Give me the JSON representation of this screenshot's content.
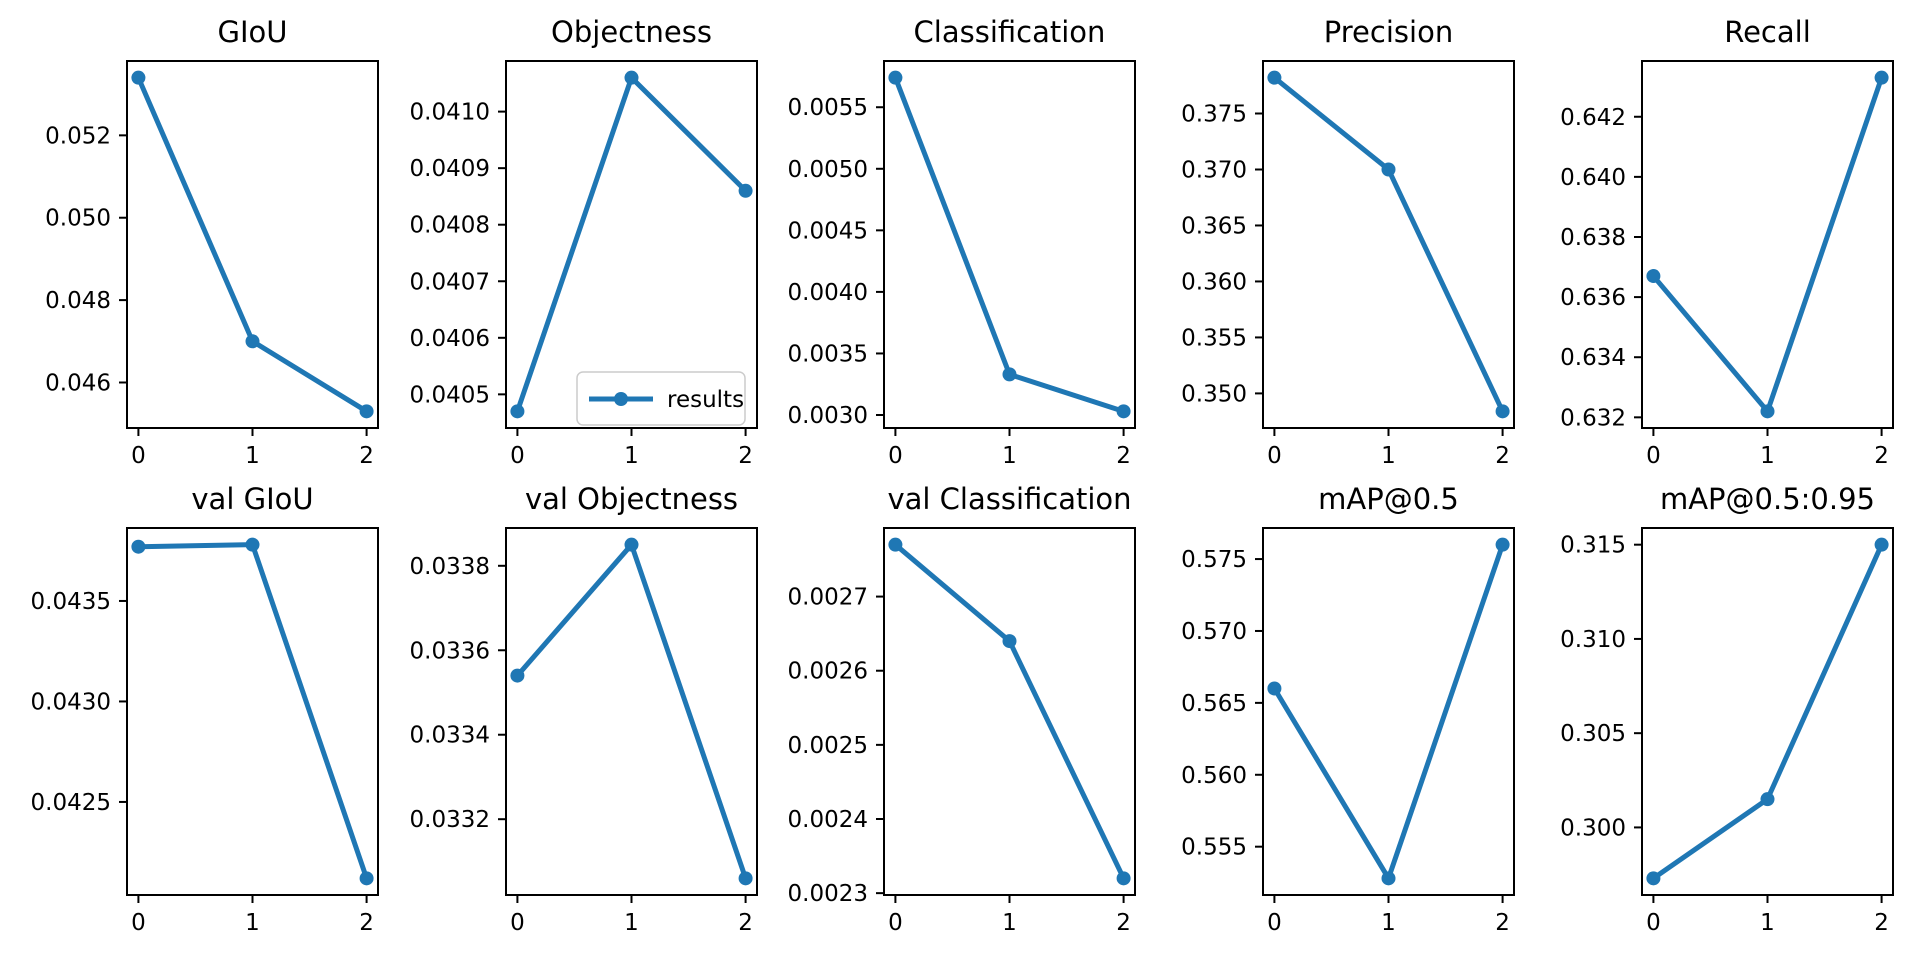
{
  "figure": {
    "background": "#ffffff",
    "line_color": "#1f77b4",
    "marker_shape": "circle",
    "series_name": "results",
    "x_axis_ticks": [
      "0",
      "1",
      "2"
    ]
  },
  "chart_data": [
    {
      "type": "line",
      "title": "GIoU",
      "x": [
        0,
        1,
        2
      ],
      "values": [
        0.0534,
        0.047,
        0.0453
      ],
      "ytick_labels": [
        "0.046",
        "0.048",
        "0.050",
        "0.052"
      ],
      "xtick_labels": [
        "0",
        "1",
        "2"
      ],
      "series": "results",
      "grid": false
    },
    {
      "type": "line",
      "title": "Objectness",
      "x": [
        0,
        1,
        2
      ],
      "values": [
        0.04047,
        0.04106,
        0.04086
      ],
      "ytick_labels": [
        "0.0405",
        "0.0406",
        "0.0407",
        "0.0408",
        "0.0409",
        "0.0410"
      ],
      "xtick_labels": [
        "0",
        "1",
        "2"
      ],
      "series": "results",
      "grid": false,
      "legend_label": "results",
      "legend_position": "lower right"
    },
    {
      "type": "line",
      "title": "Classification",
      "x": [
        0,
        1,
        2
      ],
      "values": [
        0.00574,
        0.00333,
        0.00303
      ],
      "ytick_labels": [
        "0.0030",
        "0.0035",
        "0.0040",
        "0.0045",
        "0.0050",
        "0.0055"
      ],
      "xtick_labels": [
        "0",
        "1",
        "2"
      ],
      "series": "results",
      "grid": false
    },
    {
      "type": "line",
      "title": "Precision",
      "x": [
        0,
        1,
        2
      ],
      "values": [
        0.3782,
        0.37,
        0.3484
      ],
      "ytick_labels": [
        "0.350",
        "0.355",
        "0.360",
        "0.365",
        "0.370",
        "0.375"
      ],
      "xtick_labels": [
        "0",
        "1",
        "2"
      ],
      "series": "results",
      "grid": false
    },
    {
      "type": "line",
      "title": "Recall",
      "x": [
        0,
        1,
        2
      ],
      "values": [
        0.6367,
        0.6322,
        0.6433
      ],
      "ytick_labels": [
        "0.632",
        "0.634",
        "0.636",
        "0.638",
        "0.640",
        "0.642"
      ],
      "xtick_labels": [
        "0",
        "1",
        "2"
      ],
      "series": "results",
      "grid": false
    },
    {
      "type": "line",
      "title": "val GIoU",
      "x": [
        0,
        1,
        2
      ],
      "values": [
        0.04377,
        0.04378,
        0.04212
      ],
      "ytick_labels": [
        "0.0425",
        "0.0430",
        "0.0435"
      ],
      "xtick_labels": [
        "0",
        "1",
        "2"
      ],
      "series": "results",
      "grid": false
    },
    {
      "type": "line",
      "title": "val Objectness",
      "x": [
        0,
        1,
        2
      ],
      "values": [
        0.03354,
        0.03385,
        0.03306
      ],
      "ytick_labels": [
        "0.0332",
        "0.0334",
        "0.0336",
        "0.0338"
      ],
      "xtick_labels": [
        "0",
        "1",
        "2"
      ],
      "series": "results",
      "grid": false
    },
    {
      "type": "line",
      "title": "val Classification",
      "x": [
        0,
        1,
        2
      ],
      "values": [
        0.00277,
        0.00264,
        0.00232
      ],
      "ytick_labels": [
        "0.0023",
        "0.0024",
        "0.0025",
        "0.0026",
        "0.0027"
      ],
      "xtick_labels": [
        "0",
        "1",
        "2"
      ],
      "series": "results",
      "grid": false
    },
    {
      "type": "line",
      "title": "mAP@0.5",
      "x": [
        0,
        1,
        2
      ],
      "values": [
        0.566,
        0.5528,
        0.576
      ],
      "ytick_labels": [
        "0.555",
        "0.560",
        "0.565",
        "0.570",
        "0.575"
      ],
      "xtick_labels": [
        "0",
        "1",
        "2"
      ],
      "series": "results",
      "grid": false
    },
    {
      "type": "line",
      "title": "mAP@0.5:0.95",
      "x": [
        0,
        1,
        2
      ],
      "values": [
        0.2973,
        0.3015,
        0.315
      ],
      "ytick_labels": [
        "0.300",
        "0.305",
        "0.310",
        "0.315"
      ],
      "xtick_labels": [
        "0",
        "1",
        "2"
      ],
      "series": "results",
      "grid": false
    }
  ]
}
